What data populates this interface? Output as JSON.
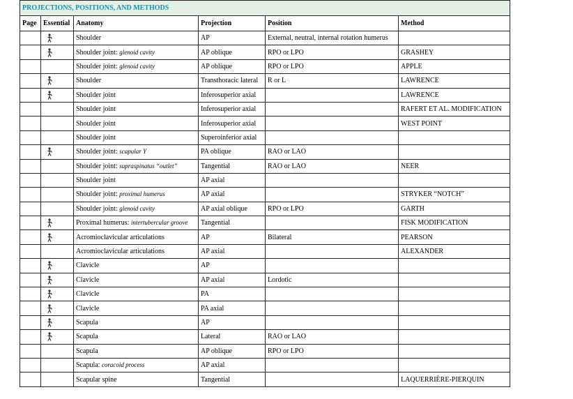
{
  "title": "PROJECTIONS, POSITIONS, AND METHODS",
  "headers": [
    "Page",
    "Essential",
    "Anatomy",
    "Projection",
    "Position",
    "Method"
  ],
  "rows": [
    {
      "essential": true,
      "anatomy": "Shoulder",
      "anatomy_italic": "",
      "projection": "AP",
      "position": "External, neutral, internal rotation humerus",
      "method": ""
    },
    {
      "essential": true,
      "anatomy": "Shoulder joint: ",
      "anatomy_italic": "glenoid cavity",
      "projection": "AP oblique",
      "position": "RPO or LPO",
      "method": "GRASHEY"
    },
    {
      "essential": false,
      "anatomy": "Shoulder joint: ",
      "anatomy_italic": "glenoid cavity",
      "projection": "AP oblique",
      "position": "RPO or LPO",
      "method": "APPLE"
    },
    {
      "essential": true,
      "anatomy": "Shoulder",
      "anatomy_italic": "",
      "projection": "Transthoracic lateral",
      "position": "R or L",
      "method": "LAWRENCE"
    },
    {
      "essential": true,
      "anatomy": "Shoulder joint",
      "anatomy_italic": "",
      "projection": "Inferosuperior axial",
      "position": "",
      "method": "LAWRENCE"
    },
    {
      "essential": false,
      "anatomy": "Shoulder joint",
      "anatomy_italic": "",
      "projection": "Inferosuperior axial",
      "position": "",
      "method": "RAFERT ET AL. MODIFICATION"
    },
    {
      "essential": false,
      "anatomy": "Shoulder joint",
      "anatomy_italic": "",
      "projection": "Inferosuperior axial",
      "position": "",
      "method": "WEST POINT"
    },
    {
      "essential": false,
      "anatomy": "Shoulder joint",
      "anatomy_italic": "",
      "projection": "Superoinferior axial",
      "position": "",
      "method": ""
    },
    {
      "essential": true,
      "anatomy": "Shoulder joint: ",
      "anatomy_italic": "scapular Y",
      "projection": "PA oblique",
      "position": "RAO or LAO",
      "method": ""
    },
    {
      "essential": false,
      "anatomy": "Shoulder joint: ",
      "anatomy_italic": "supraspinatus “outlet”",
      "projection": "Tangential",
      "position": "RAO or LAO",
      "method": "NEER"
    },
    {
      "essential": false,
      "anatomy": "Shoulder joint",
      "anatomy_italic": "",
      "projection": "AP axial",
      "position": "",
      "method": ""
    },
    {
      "essential": false,
      "anatomy": "Shoulder joint: ",
      "anatomy_italic": "proximal humerus",
      "projection": "AP axial",
      "position": "",
      "method": "STRYKER “NOTCH”"
    },
    {
      "essential": false,
      "anatomy": "Shoulder joint: ",
      "anatomy_italic": "glenoid cavity",
      "projection": "AP axial oblique",
      "position": "RPO or LPO",
      "method": "GARTH"
    },
    {
      "essential": true,
      "anatomy": "Proximal humerus: ",
      "anatomy_italic": "intertubercular groove",
      "projection": "Tangential",
      "position": "",
      "method": "FISK MODIFICATION"
    },
    {
      "essential": true,
      "anatomy": "Acromioclavicular articulations",
      "anatomy_italic": "",
      "projection": "AP",
      "position": "Bilateral",
      "method": "PEARSON"
    },
    {
      "essential": false,
      "anatomy": "Acromioclavicular articulations",
      "anatomy_italic": "",
      "projection": "AP axial",
      "position": "",
      "method": "ALEXANDER"
    },
    {
      "essential": true,
      "anatomy": "Clavicle",
      "anatomy_italic": "",
      "projection": "AP",
      "position": "",
      "method": ""
    },
    {
      "essential": true,
      "anatomy": "Clavicle",
      "anatomy_italic": "",
      "projection": "AP axial",
      "position": "Lordotic",
      "method": ""
    },
    {
      "essential": true,
      "anatomy": "Clavicle",
      "anatomy_italic": "",
      "projection": "PA",
      "position": "",
      "method": ""
    },
    {
      "essential": true,
      "anatomy": "Clavicle",
      "anatomy_italic": "",
      "projection": "PA axial",
      "position": "",
      "method": ""
    },
    {
      "essential": true,
      "anatomy": "Scapula",
      "anatomy_italic": "",
      "projection": "AP",
      "position": "",
      "method": ""
    },
    {
      "essential": true,
      "anatomy": "Scapula",
      "anatomy_italic": "",
      "projection": "Lateral",
      "position": "RAO or LAO",
      "method": ""
    },
    {
      "essential": false,
      "anatomy": "Scapula",
      "anatomy_italic": "",
      "projection": "AP oblique",
      "position": "RPO or LPO",
      "method": ""
    },
    {
      "essential": false,
      "anatomy": "Scapula: ",
      "anatomy_italic": "coracoid process",
      "projection": "AP axial",
      "position": "",
      "method": ""
    },
    {
      "essential": false,
      "anatomy": "Scapular spine",
      "anatomy_italic": "",
      "projection": "Tangential",
      "position": "",
      "method": "LAQUERRIÈRE-PIERQUIN"
    }
  ],
  "colors": {
    "title_bg": "#e2f1e4",
    "title_text": "#1a8fb5"
  },
  "icons": {
    "essential": "skeleton-figure-icon"
  }
}
